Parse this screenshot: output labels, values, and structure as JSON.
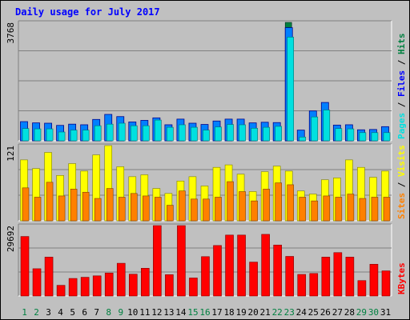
{
  "chart_data": {
    "type": "bar",
    "title": "Daily usage for July 2017",
    "colors": {
      "background": "#C0C0C0",
      "panel_bg": "#C0C0C0",
      "title": "#0000FF",
      "pages": "#0080FF",
      "pages_edge": "#00008B",
      "files": "#00E0E0",
      "hits": "#008040",
      "visits": "#FFFF00",
      "sites": "#FF8000",
      "kbytes": "#FF0000",
      "weekend_label": "#008040",
      "weekday_label": "#000000",
      "grid": "#808080"
    },
    "categories": [
      "1",
      "2",
      "3",
      "4",
      "5",
      "6",
      "7",
      "8",
      "9",
      "10",
      "11",
      "12",
      "13",
      "14",
      "15",
      "16",
      "17",
      "18",
      "19",
      "20",
      "21",
      "22",
      "23",
      "24",
      "25",
      "26",
      "27",
      "28",
      "29",
      "30",
      "31"
    ],
    "weekend_days": [
      "1",
      "2",
      "8",
      "9",
      "15",
      "16",
      "22",
      "23",
      "29",
      "30"
    ],
    "panels": [
      {
        "ymax_label": "3768",
        "ymax": 3768,
        "right_labels": [
          {
            "text": "Pages",
            "color": "#00E0E0"
          },
          {
            "text": " / ",
            "color": "#000000"
          },
          {
            "text": "Files",
            "color": "#0000FF"
          },
          {
            "text": " / ",
            "color": "#000000"
          },
          {
            "text": "Hits",
            "color": "#008040"
          }
        ],
        "series": [
          {
            "name": "Hits",
            "values": [
              0,
              0,
              0,
              0,
              0,
              0,
              0,
              0,
              0,
              0,
              0,
              0,
              0,
              0,
              0,
              0,
              0,
              0,
              0,
              0,
              0,
              0,
              3768,
              0,
              0,
              0,
              0,
              0,
              0,
              0,
              0
            ]
          },
          {
            "name": "Files",
            "values": [
              610,
              570,
              560,
              490,
              530,
              510,
              680,
              840,
              770,
              600,
              650,
              730,
              510,
              690,
              560,
              520,
              630,
              690,
              690,
              570,
              590,
              580,
              3600,
              340,
              950,
              1220,
              500,
              510,
              350,
              360,
              450
            ]
          },
          {
            "name": "Pages",
            "values": [
              390,
              380,
              380,
              280,
              340,
              340,
              480,
              530,
              560,
              480,
              480,
              660,
              430,
              510,
              430,
              340,
              440,
              520,
              510,
              400,
              430,
              460,
              3300,
              120,
              760,
              980,
              390,
              380,
              260,
              260,
              260
            ]
          }
        ]
      },
      {
        "ymax_label": "121",
        "ymax": 121,
        "right_labels": [
          {
            "text": "Sites",
            "color": "#FF8000"
          },
          {
            "text": " / ",
            "color": "#000000"
          },
          {
            "text": "Visits",
            "color": "#FFFF00"
          }
        ],
        "series": [
          {
            "name": "Visits",
            "values": [
              98,
              84,
              110,
              73,
              92,
              80,
              106,
              121,
              87,
              71,
              74,
              52,
              44,
              64,
              71,
              56,
              86,
              90,
              75,
              47,
              79,
              88,
              80,
              48,
              43,
              66,
              69,
              98,
              86,
              70,
              80
            ]
          },
          {
            "name": "Sites",
            "values": [
              53,
              38,
              62,
              40,
              51,
              46,
              36,
              52,
              38,
              44,
              40,
              38,
              25,
              48,
              35,
              35,
              38,
              63,
              47,
              32,
              51,
              61,
              58,
              38,
              32,
              40,
              38,
              43,
              36,
              38,
              38
            ]
          }
        ]
      },
      {
        "ymax_label": "29692",
        "ymax": 29692,
        "right_labels": [
          {
            "text": "KBytes",
            "color": "#FF0000"
          }
        ],
        "series": [
          {
            "name": "KBytes",
            "values": [
              25100,
              11500,
              16400,
              4500,
              7400,
              7900,
              8500,
              9700,
              13800,
              9200,
              11700,
              29692,
              9000,
              29692,
              7600,
              16600,
              21300,
              25700,
              25700,
              14300,
              26000,
              21500,
              16700,
              9100,
              9500,
              16400,
              18300,
              16400,
              6500,
              13400,
              10600
            ]
          }
        ]
      }
    ],
    "x_axis": "days 1-31",
    "grid": true
  }
}
